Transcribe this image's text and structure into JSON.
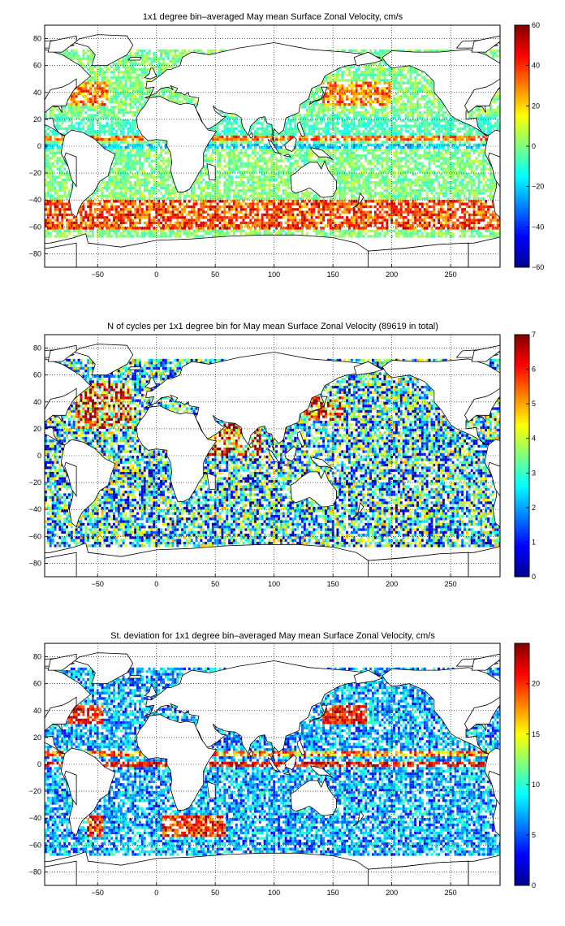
{
  "panels": [
    {
      "id": "mean",
      "title": "1x1 degree bin–averaged May mean Surface Zonal Velocity, cm/s",
      "colorbar_ticks": [
        "60",
        "40",
        "20",
        "0",
        "−20",
        "−40",
        "−60"
      ]
    },
    {
      "id": "count",
      "title": "N of cycles per 1x1 degree bin for May mean Surface Zonal Velocity (89619 in total)",
      "colorbar_ticks": [
        "7",
        "6",
        "5",
        "4",
        "3",
        "2",
        "1",
        "0"
      ]
    },
    {
      "id": "std",
      "title": "St. deviation for 1x1 degree bin–averaged May mean Surface Zonal Velocity, cm/s",
      "colorbar_ticks": [
        "20",
        "15",
        "10",
        "5",
        "0"
      ]
    }
  ],
  "x_ticks": [
    "−50",
    "0",
    "50",
    "100",
    "150",
    "200",
    "250"
  ],
  "y_ticks": [
    "80",
    "60",
    "40",
    "20",
    "0",
    "−20",
    "−40",
    "−60",
    "−80"
  ],
  "chart_data": [
    {
      "type": "heatmap",
      "title": "1x1 degree bin–averaged May mean Surface Zonal Velocity, cm/s",
      "xlim": [
        -95,
        292
      ],
      "ylim": [
        -90,
        90
      ],
      "colorbar_range": [
        -60,
        60
      ],
      "colormap": "jet",
      "grid": true
    },
    {
      "type": "heatmap",
      "title": "N of cycles per 1x1 degree bin for May mean Surface Zonal Velocity (89619 in total)",
      "xlim": [
        -95,
        292
      ],
      "ylim": [
        -90,
        90
      ],
      "colorbar_range": [
        0,
        7
      ],
      "colormap": "jet",
      "grid": true,
      "total": 89619
    },
    {
      "type": "heatmap",
      "title": "St. deviation for 1x1 degree bin–averaged May mean Surface Zonal Velocity, cm/s",
      "xlim": [
        -95,
        292
      ],
      "ylim": [
        -90,
        90
      ],
      "colorbar_range": [
        0,
        24
      ],
      "colormap": "jet",
      "grid": true
    }
  ]
}
